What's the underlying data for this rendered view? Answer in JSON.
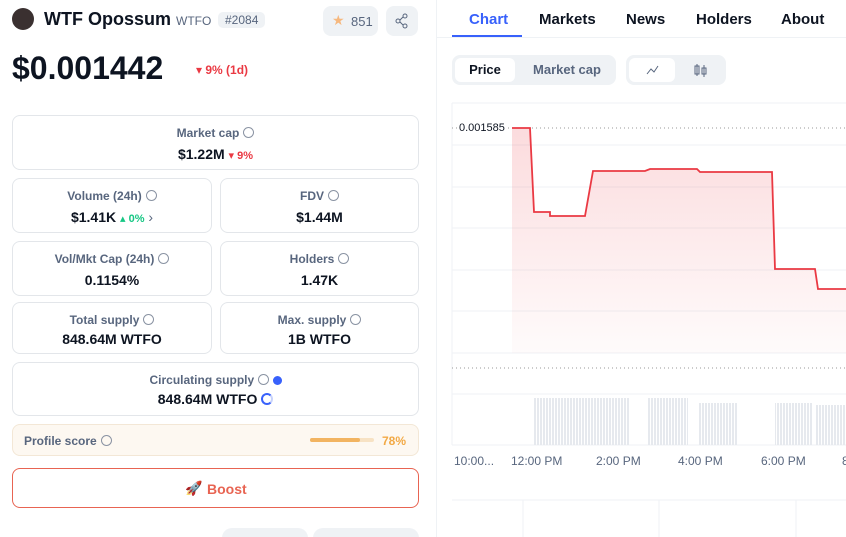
{
  "header": {
    "name": "WTF Opossum",
    "symbol": "WTFO",
    "rank": "#2084",
    "stars": "851"
  },
  "price": {
    "value": "$0.001442",
    "change": "9% (1d)"
  },
  "stats": [
    {
      "label": "Market cap",
      "value": "$1.22M",
      "change": "9%"
    },
    {
      "label": "Volume (24h)",
      "value": "$1.41K",
      "change": "0%"
    },
    {
      "label": "FDV",
      "value": "$1.44M"
    },
    {
      "label": "Vol/Mkt Cap (24h)",
      "value": "0.1154%"
    },
    {
      "label": "Holders",
      "value": "1.47K"
    },
    {
      "label": "Total supply",
      "value": "848.64M WTFO"
    },
    {
      "label": "Max. supply",
      "value": "1B WTFO"
    },
    {
      "label": "Circulating supply",
      "value": "848.64M WTFO"
    }
  ],
  "profile": {
    "label": "Profile score",
    "value": "78%"
  },
  "boost": "Boost",
  "tabs": [
    "Chart",
    "Markets",
    "News",
    "Holders",
    "About"
  ],
  "chart_toggle": [
    "Price",
    "Market cap"
  ],
  "chart": {
    "price_label": "0.001585",
    "x_labels": [
      "10:00...",
      "12:00 PM",
      "2:00 PM",
      "4:00 PM",
      "6:00 PM",
      "8"
    ]
  }
}
